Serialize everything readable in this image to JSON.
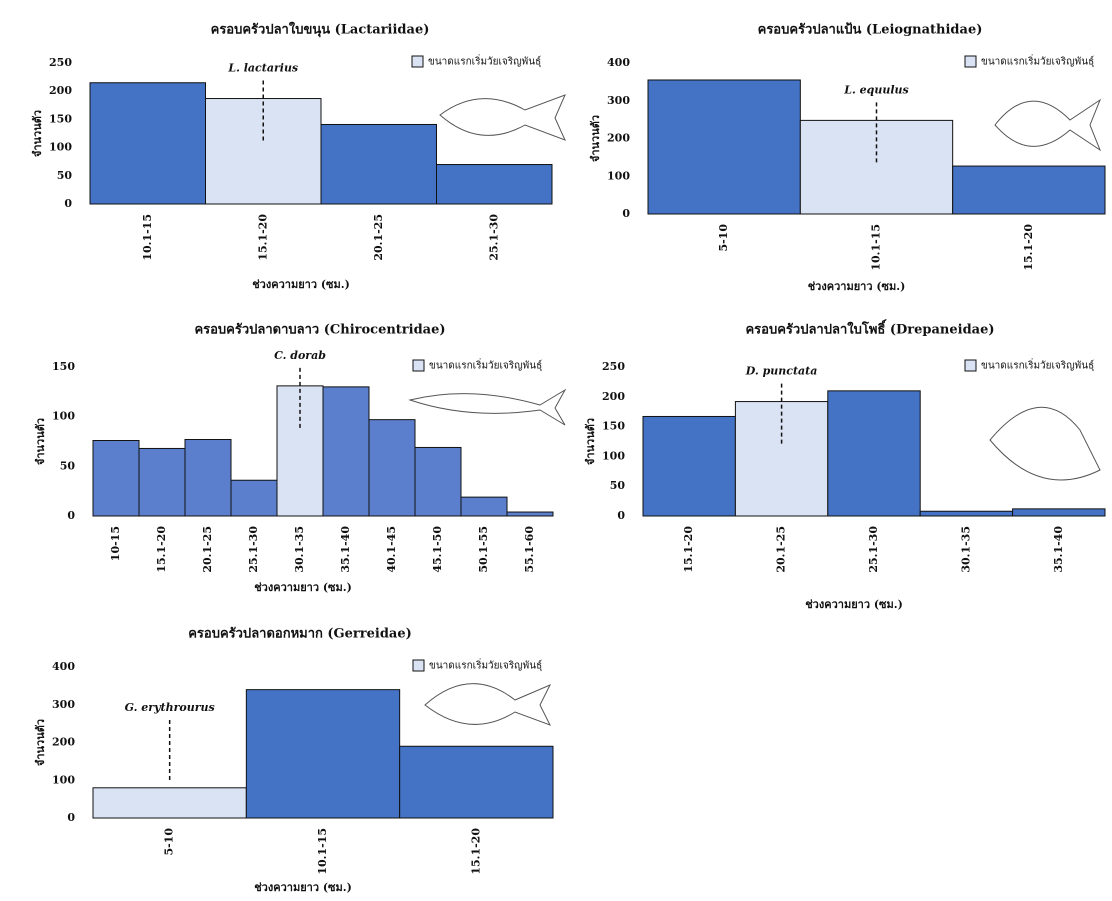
{
  "chart_data": [
    {
      "type": "bar",
      "title": "ครอบครัวปลาใบขนุน (Lactariidae)",
      "annotation": "L. lactarius",
      "x_label": "ช่วงความยาว (ซม.)",
      "y_label": "จำนวนตัว",
      "legend": {
        "label": "ขนาดแรกเริ่มวัยเจริญพันธุ์",
        "color": "#dae3f3"
      },
      "highlight": 1,
      "categories": [
        "10.1-15",
        "15.1-20",
        "20.1-25",
        "25.1-30"
      ],
      "values": [
        215,
        187,
        141,
        70
      ],
      "colors": [
        "#4472c4",
        "#dae3f3",
        "#4472c4",
        "#4472c4"
      ],
      "ylim": [
        0,
        250
      ],
      "yticks": [
        0,
        50,
        100,
        150,
        200,
        250
      ]
    },
    {
      "type": "bar",
      "title": "ครอบครัวปลาแป้น (Leiognathidae)",
      "annotation": "L. equulus",
      "x_label": "ช่วงความยาว (ซม.)",
      "y_label": "จำนวนตัว",
      "legend": {
        "label": "ขนาดแรกเริ่มวัยเจริญพันธุ์",
        "color": "#dae3f3"
      },
      "highlight": 1,
      "categories": [
        "5-10",
        "10.1-15",
        "15.1-20"
      ],
      "values": [
        355,
        248,
        127
      ],
      "colors": [
        "#4472c4",
        "#dae3f3",
        "#4472c4"
      ],
      "ylim": [
        0,
        400
      ],
      "yticks": [
        0,
        100,
        200,
        300,
        400
      ]
    },
    {
      "type": "bar",
      "title": "ครอบครัวปลาดาบลาว (Chirocentridae)",
      "annotation": "C. dorab",
      "x_label": "ช่วงความยาว (ซม.)",
      "y_label": "จำนวนตัว",
      "legend": {
        "label": "ขนาดแรกเริ่มวัยเจริญพันธุ์",
        "color": "#dae3f3"
      },
      "highlight": 4,
      "categories": [
        "10-15",
        "15.1-20",
        "20.1-25",
        "25.1-30",
        "30.1-35",
        "35.1-40",
        "40.1-45",
        "45.1-50",
        "50.1-55",
        "55.1-60"
      ],
      "values": [
        76,
        68,
        77,
        36,
        131,
        130,
        97,
        69,
        19,
        4
      ],
      "colors": [
        "#5b7fcc",
        "#5b7fcc",
        "#5b7fcc",
        "#5b7fcc",
        "#dae3f3",
        "#5b7fcc",
        "#5b7fcc",
        "#5b7fcc",
        "#5b7fcc",
        "#5b7fcc"
      ],
      "ylim": [
        0,
        150
      ],
      "yticks": [
        0,
        50,
        100,
        150
      ]
    },
    {
      "type": "bar",
      "title": "ครอบครัวปลาปลาใบโพธิ์ (Drepaneidae)",
      "annotation": "D. punctata",
      "x_label": "ช่วงความยาว (ซม.)",
      "y_label": "จำนวนตัว",
      "legend": {
        "label": "ขนาดแรกเริ่มวัยเจริญพันธุ์",
        "color": "#dae3f3"
      },
      "highlight": 1,
      "categories": [
        "15.1-20",
        "20.1-25",
        "25.1-30",
        "30.1-35",
        "35.1-40"
      ],
      "values": [
        167,
        192,
        210,
        8,
        12
      ],
      "colors": [
        "#4472c4",
        "#dae3f3",
        "#4472c4",
        "#4472c4",
        "#4472c4"
      ],
      "ylim": [
        0,
        250
      ],
      "yticks": [
        0,
        50,
        100,
        150,
        200,
        250
      ]
    },
    {
      "type": "bar",
      "title": "ครอบครัวปลาดอกหมาก (Gerreidae)",
      "annotation": "G. erythrourus",
      "x_label": "ช่วงความยาว (ซม.)",
      "y_label": "จำนวนตัว",
      "legend": {
        "label": "ขนาดแรกเริ่มวัยเจริญพันธุ์",
        "color": "#dae3f3"
      },
      "highlight": 0,
      "categories": [
        "5-10",
        "10.1-15",
        "15.1-20"
      ],
      "values": [
        80,
        340,
        190
      ],
      "colors": [
        "#dae3f3",
        "#4472c4",
        "#4472c4"
      ],
      "ylim": [
        0,
        400
      ],
      "yticks": [
        0,
        100,
        200,
        300,
        400
      ]
    }
  ]
}
